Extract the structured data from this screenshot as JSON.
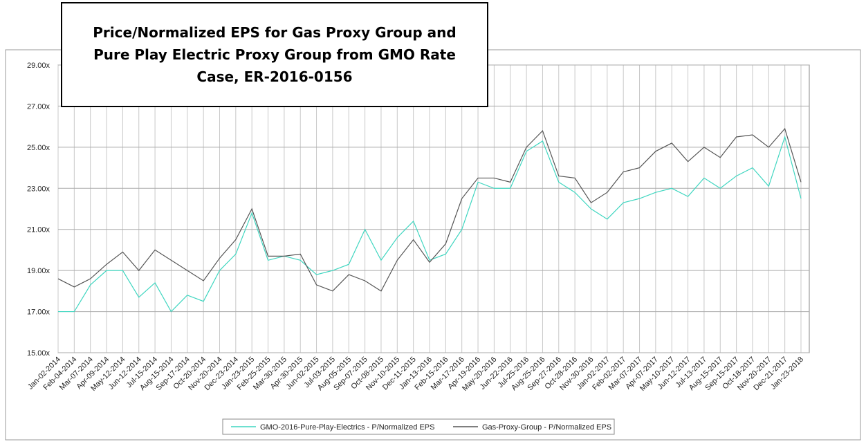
{
  "chart_data": {
    "type": "line",
    "title": "Price/Normalized EPS for Gas Proxy Group and Pure Play Electric Proxy Group from GMO Rate Case, ER-2016-0156",
    "categories": [
      "Jan-02-2014",
      "Feb-04-2014",
      "Mar-07-2014",
      "Apr-09-2014",
      "May-12-2014",
      "Jun-12-2014",
      "Jul-15-2014",
      "Aug-15-2014",
      "Sep-17-2014",
      "Oct-20-2014",
      "Nov-20-2014",
      "Dec-23-2014",
      "Jan-23-2015",
      "Feb-25-2015",
      "Mar-30-2015",
      "Apr-30-2015",
      "Jun-02-2015",
      "Jul-03-2015",
      "Aug-05-2015",
      "Sep-07-2015",
      "Oct-08-2015",
      "Nov-10-2015",
      "Dec-11-2015",
      "Jan-13-2016",
      "Feb-15-2016",
      "Mar-17-2016",
      "Apr-19-2016",
      "May-20-2016",
      "Jun-22-2016",
      "Jul-25-2016",
      "Aug-25-2016",
      "Sep-27-2016",
      "Oct-28-2016",
      "Nov-30-2016",
      "Jan-02-2017",
      "Feb-02-2017",
      "Mar-07-2017",
      "Apr-07-2017",
      "May-10-2017",
      "Jun-12-2017",
      "Jul-13-2017",
      "Aug-15-2017",
      "Sep-15-2017",
      "Oct-18-2017",
      "Nov-20-2017",
      "Dec-21-2017",
      "Jan-23-2018"
    ],
    "series": [
      {
        "name": "GMO-2016-Pure-Play-Electrics - P/Normalized EPS",
        "color": "#3fd6c0",
        "values": [
          17.0,
          17.0,
          18.3,
          19.0,
          19.0,
          17.7,
          18.4,
          17.0,
          17.8,
          17.5,
          19.0,
          19.8,
          21.8,
          19.5,
          19.7,
          19.5,
          18.8,
          19.0,
          19.3,
          21.0,
          19.5,
          20.6,
          21.4,
          19.5,
          19.8,
          21.0,
          23.3,
          23.0,
          23.0,
          24.8,
          25.3,
          23.3,
          22.8,
          22.0,
          21.5,
          22.3,
          22.5,
          22.8,
          23.0,
          22.6,
          23.5,
          23.0,
          23.6,
          24.0,
          23.1,
          25.5,
          22.5
        ]
      },
      {
        "name": "Gas-Proxy-Group - P/Normalized EPS",
        "color": "#555555",
        "values": [
          18.6,
          18.2,
          18.6,
          19.3,
          19.9,
          19.0,
          20.0,
          19.5,
          19.0,
          18.5,
          19.6,
          20.5,
          22.0,
          19.7,
          19.7,
          19.8,
          18.3,
          18.0,
          18.8,
          18.5,
          18.0,
          19.5,
          20.5,
          19.4,
          20.3,
          22.5,
          23.5,
          23.5,
          23.3,
          25.0,
          25.8,
          23.6,
          23.5,
          22.3,
          22.8,
          23.8,
          24.0,
          24.8,
          25.2,
          24.3,
          25.0,
          24.5,
          25.5,
          25.6,
          25.0,
          25.9,
          23.3
        ]
      }
    ],
    "ylim": [
      15,
      29
    ],
    "yticks": [
      {
        "value": 15,
        "label": "15.00x"
      },
      {
        "value": 17,
        "label": "17.00x"
      },
      {
        "value": 19,
        "label": "19.00x"
      },
      {
        "value": 21,
        "label": "21.00x"
      },
      {
        "value": 23,
        "label": "23.00x"
      },
      {
        "value": 25,
        "label": "25.00x"
      },
      {
        "value": 27,
        "label": "27.00x"
      },
      {
        "value": 29,
        "label": "29.00x"
      }
    ],
    "grid": true
  }
}
